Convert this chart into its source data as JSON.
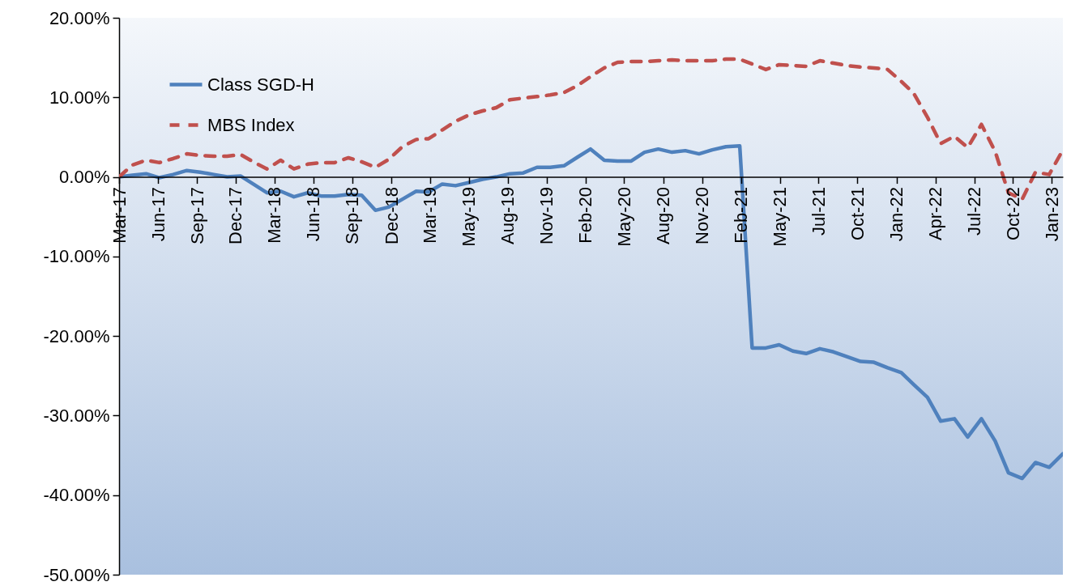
{
  "chart_data": {
    "type": "line",
    "x": [
      "2017-03-31",
      "2017-04-30",
      "2017-05-31",
      "2017-06-30",
      "2017-07-31",
      "2017-08-31",
      "2017-09-30",
      "2017-10-31",
      "2017-11-30",
      "2017-12-31",
      "2018-01-31",
      "2018-02-28",
      "2018-03-31",
      "2018-04-30",
      "2018-05-31",
      "2018-06-30",
      "2018-07-31",
      "2018-08-31",
      "2018-09-30",
      "2018-10-31",
      "2018-11-30",
      "2018-12-31",
      "2019-01-31",
      "2019-02-28",
      "2019-03-31",
      "2019-04-30",
      "2019-05-31",
      "2019-06-30",
      "2019-07-31",
      "2019-08-31",
      "2019-09-30",
      "2019-10-31",
      "2019-11-30",
      "2019-12-31",
      "2020-01-31",
      "2020-02-29",
      "2020-03-31",
      "2020-04-30",
      "2020-05-31",
      "2020-06-30",
      "2020-07-31",
      "2020-08-31",
      "2020-09-30",
      "2020-10-31",
      "2020-11-30",
      "2020-12-31",
      "2021-01-31",
      "2021-02-28",
      "2021-03-31",
      "2021-04-30",
      "2021-05-31",
      "2021-06-30",
      "2021-07-31",
      "2021-08-31",
      "2021-09-30",
      "2021-10-31",
      "2021-11-30",
      "2021-12-31",
      "2022-01-31",
      "2022-02-28",
      "2022-03-31",
      "2022-04-30",
      "2022-05-31",
      "2022-06-30",
      "2022-07-31",
      "2022-08-31",
      "2022-09-30",
      "2022-10-31",
      "2022-11-30",
      "2022-12-31",
      "2023-01-31"
    ],
    "series": [
      {
        "name": "Class SGD-H",
        "color": "#4f81bd",
        "line_style": "solid",
        "values": [
          0,
          0.2,
          0.4,
          -0.1,
          0.3,
          0.8,
          0.6,
          0.3,
          0,
          0.1,
          -1.0,
          -2.0,
          -1.8,
          -2.5,
          -2.0,
          -2.4,
          -2.4,
          -2.2,
          -2.3,
          -4.2,
          -3.8,
          -2.8,
          -1.8,
          -1.9,
          -0.9,
          -1.1,
          -0.7,
          -0.3,
          0,
          0.4,
          0.5,
          1.2,
          1.2,
          1.4,
          2.5,
          3.5,
          2.1,
          2.0,
          2.0,
          3.1,
          3.5,
          3.1,
          3.3,
          2.9,
          3.4,
          3.8,
          3.9,
          -21.5,
          -21.5,
          -21.1,
          -21.9,
          -22.2,
          -21.6,
          -22.0,
          -22.6,
          -23.2,
          -23.3,
          -24.0,
          -24.6,
          -26.1,
          -27.7,
          -30.7,
          -30.4,
          -32.7,
          -30.4,
          -33.2,
          -37.2,
          -37.9,
          -35.9,
          -36.5,
          -34.8
        ]
      },
      {
        "name": "MBS Index",
        "color": "#c0504d",
        "line_style": "dashed",
        "values": [
          0,
          1.5,
          2.1,
          1.8,
          2.3,
          2.9,
          2.7,
          2.6,
          2.6,
          2.8,
          1.8,
          1.0,
          2.1,
          1.0,
          1.6,
          1.8,
          1.8,
          2.4,
          1.9,
          1.2,
          2.2,
          3.8,
          4.7,
          4.8,
          5.9,
          7.0,
          7.8,
          8.3,
          8.7,
          9.7,
          9.9,
          10.1,
          10.3,
          10.6,
          11.5,
          12.6,
          13.7,
          14.4,
          14.5,
          14.5,
          14.6,
          14.7,
          14.6,
          14.6,
          14.6,
          14.8,
          14.8,
          14.2,
          13.5,
          14.1,
          14.0,
          13.9,
          14.6,
          14.3,
          14.0,
          13.8,
          13.7,
          13.5,
          12.0,
          10.5,
          7.5,
          4.2,
          5.1,
          3.7,
          6.6,
          3.2,
          -2.0,
          -2.8,
          0.6,
          0.3,
          3.4
        ]
      }
    ],
    "xlim": [
      "2017-03-31",
      "2023-01-31"
    ],
    "xticks": [
      {
        "value": "2017-03-31",
        "label": "Mar-17"
      },
      {
        "value": "2017-06-27",
        "label": "Jun-17"
      },
      {
        "value": "2017-09-23",
        "label": "Sep-17"
      },
      {
        "value": "2017-12-19",
        "label": "Dec-17"
      },
      {
        "value": "2018-03-17",
        "label": "Mar-18"
      },
      {
        "value": "2018-06-13",
        "label": "Jun-18"
      },
      {
        "value": "2018-09-09",
        "label": "Sep-18"
      },
      {
        "value": "2018-12-06",
        "label": "Dec-18"
      },
      {
        "value": "2019-03-03",
        "label": "Mar-19"
      },
      {
        "value": "2019-05-30",
        "label": "May-19"
      },
      {
        "value": "2019-08-26",
        "label": "Aug-19"
      },
      {
        "value": "2019-11-22",
        "label": "Nov-19"
      },
      {
        "value": "2020-02-18",
        "label": "Feb-20"
      },
      {
        "value": "2020-05-15",
        "label": "May-20"
      },
      {
        "value": "2020-08-11",
        "label": "Aug-20"
      },
      {
        "value": "2020-11-07",
        "label": "Nov-20"
      },
      {
        "value": "2021-02-03",
        "label": "Feb-21"
      },
      {
        "value": "2021-05-02",
        "label": "May-21"
      },
      {
        "value": "2021-07-28",
        "label": "Jul-21"
      },
      {
        "value": "2021-10-24",
        "label": "Oct-21"
      },
      {
        "value": "2022-01-20",
        "label": "Jan-22"
      },
      {
        "value": "2022-04-18",
        "label": "Apr-22"
      },
      {
        "value": "2022-07-15",
        "label": "Jul-22"
      },
      {
        "value": "2022-10-10",
        "label": "Oct-22"
      },
      {
        "value": "2023-01-06",
        "label": "Jan-23"
      }
    ],
    "ylim": [
      -50,
      20
    ],
    "yticks": [
      {
        "value": -50,
        "label": "-50.00%"
      },
      {
        "value": -40,
        "label": "-40.00%"
      },
      {
        "value": -30,
        "label": "-30.00%"
      },
      {
        "value": -20,
        "label": "-20.00%"
      },
      {
        "value": -10,
        "label": "-10.00%"
      },
      {
        "value": 0,
        "label": "0.00%"
      },
      {
        "value": 10,
        "label": "10.00%"
      },
      {
        "value": 20,
        "label": "20.00%"
      }
    ],
    "legend": "top left"
  }
}
